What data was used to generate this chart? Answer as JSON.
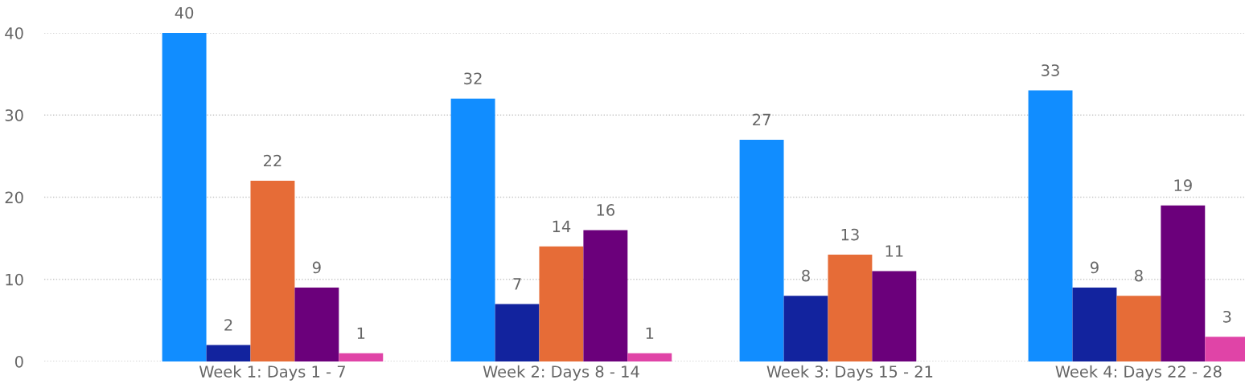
{
  "chart_data": {
    "type": "bar",
    "categories": [
      "Week 1: Days 1 - 7",
      "Week 2: Days 8 - 14",
      "Week 3: Days 15 - 21",
      "Week 4: Days 22 - 28"
    ],
    "series": [
      {
        "color": "#118dff",
        "values": [
          40,
          32,
          27,
          33
        ]
      },
      {
        "color": "#12239e",
        "values": [
          2,
          7,
          8,
          9
        ]
      },
      {
        "color": "#e66c37",
        "values": [
          22,
          14,
          13,
          8
        ]
      },
      {
        "color": "#6b007b",
        "values": [
          9,
          16,
          11,
          19
        ]
      },
      {
        "color": "#e044a7",
        "values": [
          1,
          1,
          null,
          3
        ]
      }
    ],
    "ylim": [
      0,
      40
    ],
    "yticks": [
      0,
      10,
      20,
      30,
      40
    ],
    "grid": "y",
    "line_style": "dotted",
    "data_labels": true,
    "legend": false
  }
}
